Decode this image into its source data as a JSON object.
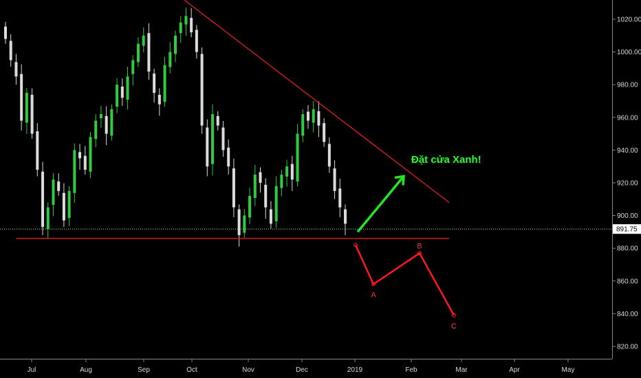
{
  "chart_data": {
    "type": "candlestick",
    "title": "",
    "xlabel": "",
    "ylabel": "",
    "ylim": [
      812,
      1030
    ],
    "x_ticks": [
      "Jul",
      "Aug",
      "Sep",
      "Oct",
      "Nov",
      "Dec",
      "2019",
      "Feb",
      "Mar",
      "Apr",
      "May"
    ],
    "y_ticks": [
      820,
      840,
      860,
      880,
      900,
      920,
      940,
      960,
      980,
      1000,
      1020
    ],
    "y_tick_labels": [
      "820.00",
      "840.00",
      "860.00",
      "880.00",
      "900.00",
      "920.00",
      "940.00",
      "960.00",
      "980.00",
      "1000.00",
      "1020.00"
    ],
    "last_price": 891.75,
    "last_price_label": "891.75",
    "closes": [
      1008,
      995,
      985,
      958,
      975,
      950,
      928,
      893,
      905,
      922,
      915,
      897,
      915,
      940,
      935,
      928,
      948,
      958,
      962,
      950,
      965,
      980,
      972,
      985,
      995,
      1005,
      1010,
      988,
      975,
      968,
      992,
      1000,
      1010,
      1018,
      1022,
      1012,
      1000,
      955,
      930,
      962,
      955,
      940,
      930,
      905,
      888,
      900,
      912,
      925,
      920,
      905,
      895,
      918,
      925,
      930,
      922,
      950,
      962,
      958,
      965,
      955,
      945,
      930,
      915,
      905,
      895
    ],
    "candle_colors": {
      "up": "#2ecc40",
      "down": "#dcdcdc"
    },
    "trendlines": [
      {
        "name": "resistance",
        "color": "#e0201f",
        "points": [
          [
            "Sep",
            1036
          ],
          [
            "2019+4w",
            908
          ]
        ]
      },
      {
        "name": "support",
        "color": "#e0201f",
        "points": [
          [
            "Jul-1w",
            886
          ],
          [
            "2019+4w",
            886
          ]
        ]
      }
    ],
    "projection": {
      "color": "#ff1a1a",
      "points": [
        {
          "label": "",
          "y": 882
        },
        {
          "label": "A",
          "y": 858
        },
        {
          "label": "B",
          "y": 877
        },
        {
          "label": "C",
          "y": 839
        }
      ]
    },
    "arrow": {
      "color": "#22e622",
      "from_y": 890,
      "to_y": 924
    },
    "annotation": "Đặt cửa Xanh!"
  }
}
